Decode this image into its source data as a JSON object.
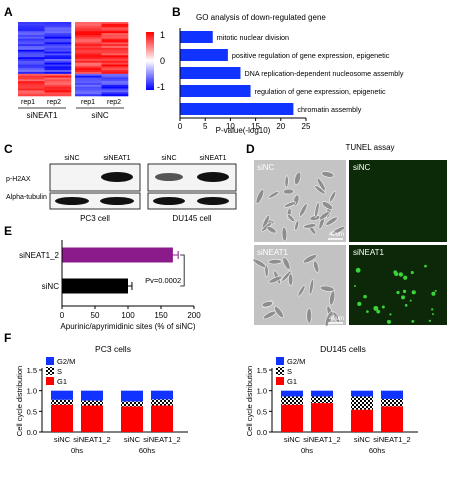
{
  "panels": {
    "A": {
      "letter": "A",
      "columns": [
        "rep1",
        "rep2",
        "rep1",
        "rep2"
      ],
      "groups": [
        "siNEAT1",
        "siNC"
      ],
      "colorbar_ticks": [
        "1",
        "0",
        "-1"
      ],
      "colors": {
        "high": "#ff0000",
        "mid": "#ffffff",
        "low": "#0000ff"
      }
    },
    "B": {
      "letter": "B",
      "chart_data": {
        "type": "bar",
        "orientation": "horizontal",
        "title": "GO analysis of down-regulated gene",
        "xlabel": "P-value(-log10)",
        "xlim": [
          0,
          25
        ],
        "xticks": [
          "0",
          "5",
          "10",
          "15",
          "20",
          "25"
        ],
        "color": "#1133ff",
        "categories": [
          "mitotic nuclear division",
          "positive regulation of gene expression, epigenetic",
          "DNA replication-dependent nucleosome assembly",
          "regulation of gene expression, epigenetic",
          "chromatin assembly"
        ],
        "values": [
          6.5,
          9.5,
          12,
          14,
          22.5
        ]
      }
    },
    "C": {
      "letter": "C",
      "lanes": [
        "siNC",
        "siNEAT1",
        "siNC",
        "siNEAT1"
      ],
      "proteins": [
        "p-H2AX",
        "Alpha-tubulin"
      ],
      "cells": [
        "PC3 cell",
        "DU145 cell"
      ]
    },
    "D": {
      "letter": "D",
      "title": "TUNEL assay",
      "labels": {
        "top_left": "siNC",
        "top_right": "siNC",
        "bottom_left": "siNEAT1",
        "bottom_right": "siNEAT1"
      },
      "scale_bar": "40um"
    },
    "E": {
      "letter": "E",
      "chart_data": {
        "type": "bar",
        "orientation": "horizontal",
        "categories": [
          "siNEAT1_2",
          "siNC"
        ],
        "values": [
          168,
          100
        ],
        "errors": [
          8,
          6
        ],
        "colors": [
          "#8b1a8b",
          "#000000"
        ],
        "xlim": [
          0,
          200
        ],
        "xticks": [
          "0",
          "50",
          "100",
          "150",
          "200"
        ],
        "xlabel": "Apurinic/apyrimidinic sites (% of siNC)",
        "annotation": "Pv=0.0002"
      }
    },
    "F": {
      "letter": "F",
      "chart_data": [
        {
          "type": "bar",
          "stacked": true,
          "title": "PC3 cells",
          "ylabel": "Cell cycle distribution",
          "ylim": [
            0,
            1.5
          ],
          "yticks": [
            "0.0",
            "0.5",
            "1.0",
            "1.5"
          ],
          "categories": [
            "siNC",
            "siNEAT1_2",
            "siNC",
            "siNEAT1_2"
          ],
          "time_labels": [
            "0hs",
            "60hs"
          ],
          "series": [
            {
              "name": "G1",
              "color": "#ff0000",
              "values": [
                0.66,
                0.64,
                0.62,
                0.64
              ]
            },
            {
              "name": "S",
              "color": "#888888",
              "values": [
                0.12,
                0.12,
                0.12,
                0.15
              ]
            },
            {
              "name": "G2/M",
              "color": "#1133ff",
              "values": [
                0.22,
                0.24,
                0.26,
                0.21
              ]
            }
          ]
        },
        {
          "type": "bar",
          "stacked": true,
          "title": "DU145 cells",
          "ylabel": "Cell cycle distribution",
          "ylim": [
            0,
            1.5
          ],
          "yticks": [
            "0.0",
            "0.5",
            "1.0",
            "1.5"
          ],
          "categories": [
            "siNC",
            "siNEAT1_2",
            "siNC",
            "siNEAT1_2"
          ],
          "time_labels": [
            "0hs",
            "60hs"
          ],
          "series": [
            {
              "name": "G1",
              "color": "#ff0000",
              "values": [
                0.66,
                0.7,
                0.54,
                0.62
              ]
            },
            {
              "name": "S",
              "color": "#888888",
              "values": [
                0.2,
                0.16,
                0.32,
                0.18
              ]
            },
            {
              "name": "G2/M",
              "color": "#1133ff",
              "values": [
                0.14,
                0.14,
                0.14,
                0.2
              ]
            }
          ]
        }
      ]
    }
  }
}
